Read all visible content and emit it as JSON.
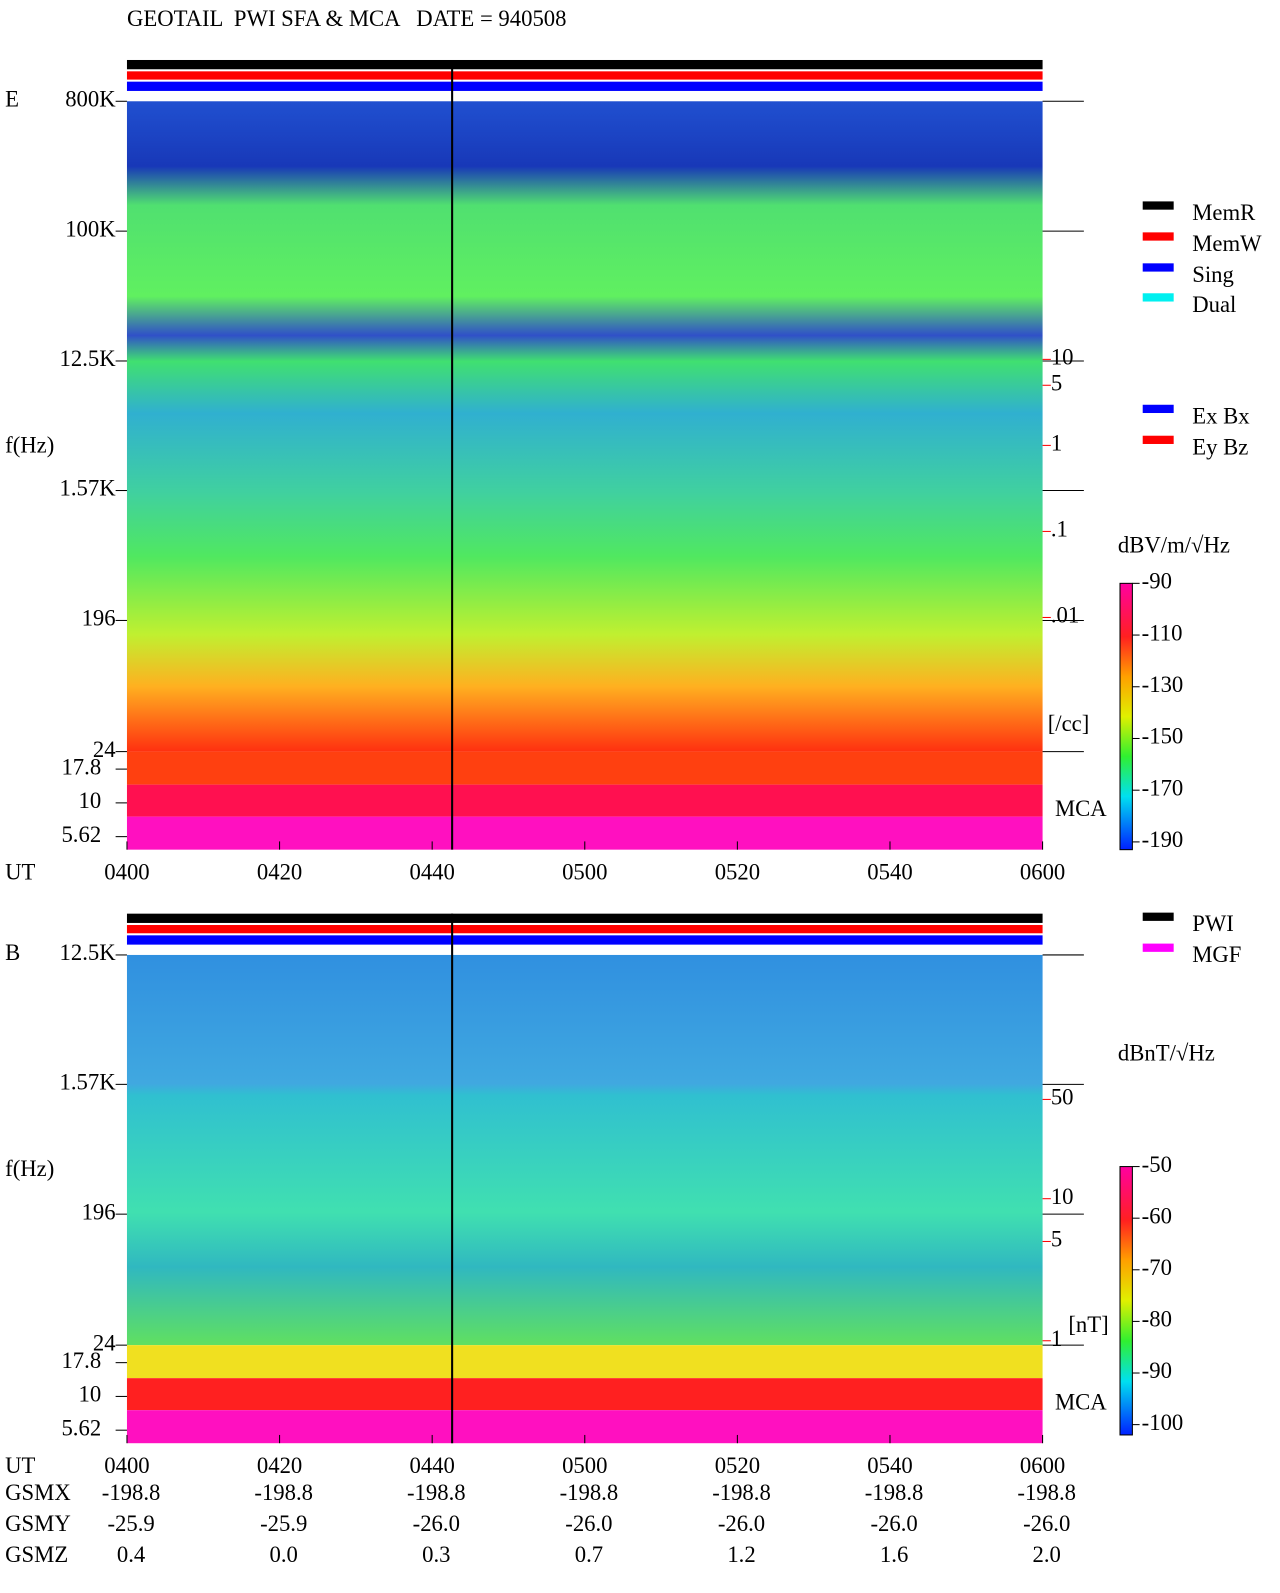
{
  "header": {
    "title": "GEOTAIL  PWI SFA & MCA   DATE = 940508"
  },
  "chart_data": [
    {
      "type": "spectrogram",
      "panel_label": "E",
      "y_label": "f(Hz)",
      "x_label": "UT",
      "log_y": true,
      "ylim": [
        24,
        800000
      ],
      "yticks": [
        {
          "value": 800000,
          "label": "800K"
        },
        {
          "value": 100000,
          "label": "100K"
        },
        {
          "value": 12500,
          "label": "12.5K"
        },
        {
          "value": 1570,
          "label": "1.57K"
        },
        196,
        24
      ],
      "mca_label": "MCA",
      "mca_ylim": [
        4.5,
        24
      ],
      "mca_yticks": [
        17.8,
        10,
        5.62
      ],
      "xlim": [
        240,
        360
      ],
      "xticks": [
        {
          "value": 240,
          "label": "0400"
        },
        {
          "value": 260,
          "label": "0420"
        },
        {
          "value": 280,
          "label": "0440"
        },
        {
          "value": 300,
          "label": "0500"
        },
        {
          "value": 320,
          "label": "0520"
        },
        {
          "value": 340,
          "label": "0540"
        },
        {
          "value": 360,
          "label": "0600"
        }
      ],
      "right_ylim": [
        2e-05,
        10000
      ],
      "right_yticks": [
        10,
        5,
        1,
        {
          "value": 0.1,
          "label": ".1"
        },
        {
          "value": 0.01,
          "label": ".01"
        }
      ],
      "right_unit": "[/cc]",
      "right_color": "#ff0000",
      "colorbar": {
        "label": "dBV/m/√Hz",
        "lim": [
          -193,
          -90
        ],
        "ticks": [
          -90,
          -110,
          -130,
          -150,
          -170,
          -190
        ]
      },
      "legends": [
        [
          {
            "name": "MemR",
            "color": "#000000"
          },
          {
            "name": "MemW",
            "color": "#ff0000"
          },
          {
            "name": "Sing",
            "color": "#0000ff"
          },
          {
            "name": "Dual",
            "color": "#00f0f0"
          }
        ],
        [
          {
            "name": "Ex Bx",
            "color": "#0000ff"
          },
          {
            "name": "Ey Bz",
            "color": "#ff0000"
          }
        ]
      ]
    },
    {
      "type": "spectrogram",
      "panel_label": "B",
      "y_label": "f(Hz)",
      "x_label": "UT",
      "log_y": true,
      "ylim": [
        24,
        12500
      ],
      "yticks": [
        {
          "value": 12500,
          "label": "12.5K"
        },
        {
          "value": 1570,
          "label": "1.57K"
        },
        196,
        24
      ],
      "mca_label": "MCA",
      "mca_ylim": [
        4.5,
        24
      ],
      "mca_yticks": [
        17.8,
        10,
        5.62
      ],
      "xlim": [
        240,
        360
      ],
      "xticks": [
        {
          "value": 240,
          "label": "0400"
        },
        {
          "value": 260,
          "label": "0420"
        },
        {
          "value": 280,
          "label": "0440"
        },
        {
          "value": 300,
          "label": "0500"
        },
        {
          "value": 320,
          "label": "0520"
        },
        {
          "value": 340,
          "label": "0540"
        },
        {
          "value": 360,
          "label": "0600"
        }
      ],
      "right_ylim": [
        0.19,
        520
      ],
      "right_yticks": [
        50,
        10,
        5,
        1
      ],
      "right_unit": "[nT]",
      "right_color": "#ff0000",
      "colorbar": {
        "label": "dBnT/√Hz",
        "lim": [
          -102,
          -50
        ],
        "ticks": [
          -50,
          -60,
          -70,
          -80,
          -90,
          -100
        ]
      },
      "legends": [
        [
          {
            "name": "PWI",
            "color": "#000000"
          },
          {
            "name": "MGF",
            "color": "#ff00ff"
          }
        ]
      ]
    }
  ],
  "orbit": {
    "rows": [
      {
        "label": "GSMX",
        "values": [
          "-198.8",
          "-198.8",
          "-198.8",
          "-198.8",
          "-198.8",
          "-198.8",
          "-198.8"
        ]
      },
      {
        "label": "GSMY",
        "values": [
          "-25.9",
          "-25.9",
          "-26.0",
          "-26.0",
          "-26.0",
          "-26.0",
          "-26.0"
        ]
      },
      {
        "label": "GSMZ",
        "values": [
          "0.4",
          "0.0",
          "0.3",
          "0.7",
          "1.2",
          "1.6",
          "2.0"
        ]
      }
    ]
  }
}
